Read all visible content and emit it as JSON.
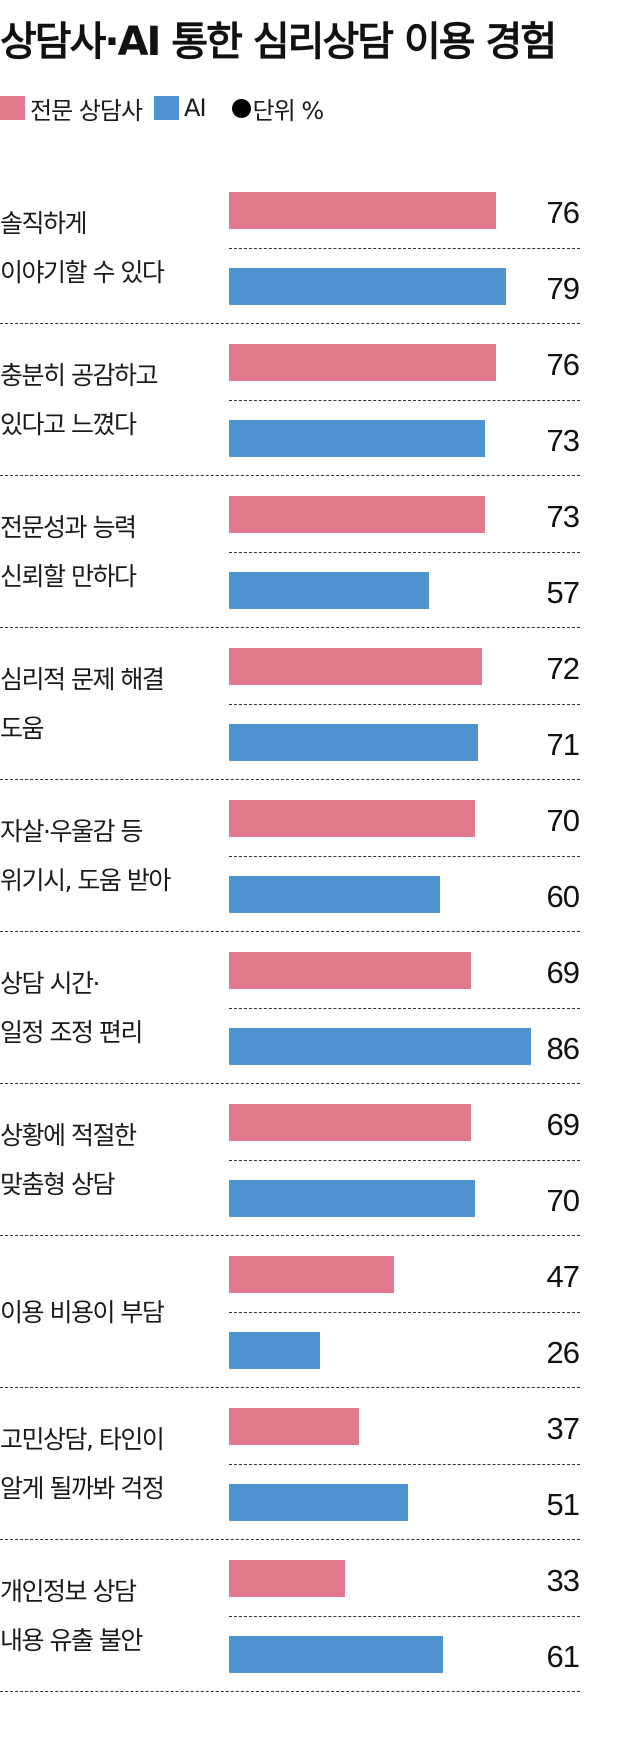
{
  "title": "상담사·AI 통한 심리상담 이용 경험",
  "legend": {
    "items": [
      {
        "label": "전문 상담사",
        "color": "#E27A8E"
      },
      {
        "label": "AI",
        "color": "#4F93D0"
      }
    ],
    "unit_bullet": "●",
    "unit_label": "단위 %"
  },
  "colors": {
    "counselor": "#E27A8E",
    "ai": "#4F93D0",
    "text": "#1a1a1a",
    "divider": "#333333"
  },
  "groups": [
    {
      "lines": [
        "솔직하게",
        "이야기할 수 있다"
      ],
      "counselor": "76",
      "ai": "79"
    },
    {
      "lines": [
        "충분히 공감하고",
        "있다고 느꼈다"
      ],
      "counselor": "76",
      "ai": "73"
    },
    {
      "lines": [
        "전문성과 능력",
        "신뢰할 만하다"
      ],
      "counselor": "73",
      "ai": "57"
    },
    {
      "lines": [
        "심리적 문제 해결",
        "도움"
      ],
      "counselor": "72",
      "ai": "71"
    },
    {
      "lines": [
        "자살·우울감 등",
        "위기시, 도움 받아"
      ],
      "counselor": "70",
      "ai": "60"
    },
    {
      "lines": [
        "상담 시간·",
        "일정 조정 편리"
      ],
      "counselor": "69",
      "ai": "86"
    },
    {
      "lines": [
        "상황에 적절한",
        "맞춤형 상담"
      ],
      "counselor": "69",
      "ai": "70"
    },
    {
      "lines": [
        "이용 비용이 부담"
      ],
      "counselor": "47",
      "ai": "26"
    },
    {
      "lines": [
        "고민상담, 타인이",
        "알게 될까봐 걱정"
      ],
      "counselor": "37",
      "ai": "51"
    },
    {
      "lines": [
        "개인정보 상담",
        "내용 유출 불안"
      ],
      "counselor": "33",
      "ai": "61"
    }
  ],
  "chart_data": {
    "type": "bar",
    "orientation": "horizontal",
    "title": "상담사·AI 통한 심리상담 이용 경험",
    "unit": "%",
    "categories": [
      "솔직하게 이야기할 수 있다",
      "충분히 공감하고 있다고 느꼈다",
      "전문성과 능력 신뢰할 만하다",
      "심리적 문제 해결 도움",
      "자살·우울감 등 위기시, 도움 받아",
      "상담 시간·일정 조정 편리",
      "상황에 적절한 맞춤형 상담",
      "이용 비용이 부담",
      "고민상담, 타인이 알게 될까봐 걱정",
      "개인정보 상담 내용 유출 불안"
    ],
    "series": [
      {
        "name": "전문 상담사",
        "color": "#E27A8E",
        "values": [
          76,
          76,
          73,
          72,
          70,
          69,
          69,
          47,
          37,
          33
        ]
      },
      {
        "name": "AI",
        "color": "#4F93D0",
        "values": [
          79,
          73,
          57,
          71,
          60,
          86,
          70,
          26,
          51,
          61
        ]
      }
    ],
    "xlabel": "",
    "ylabel": "",
    "xlim": [
      0,
      100
    ],
    "grid": false,
    "legend_position": "top-left",
    "data_labels": true
  }
}
